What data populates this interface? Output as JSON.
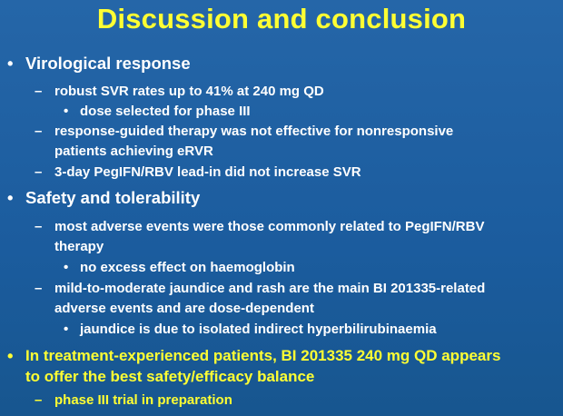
{
  "slide": {
    "title": "Discussion and conclusion",
    "colors": {
      "background": "#1d5fa0",
      "title": "#ffff33",
      "text": "#ffffff",
      "highlight": "#ffff33"
    },
    "bullet_markers": {
      "level1": "•",
      "level2": "–",
      "level3": "•"
    },
    "sections": [
      {
        "heading": "Virological response",
        "items": [
          {
            "text": "robust SVR rates up to 41% at 240 mg QD",
            "subitems": [
              "dose selected for phase III"
            ]
          },
          {
            "text_lines": [
              "response-guided therapy was not effective for nonresponsive",
              "patients achieving eRVR"
            ]
          },
          {
            "text": "3-day PegIFN/RBV lead-in did not increase SVR"
          }
        ]
      },
      {
        "heading": "Safety and tolerability",
        "items": [
          {
            "text_lines": [
              "most adverse events were those commonly related to PegIFN/RBV",
              "therapy"
            ],
            "subitems": [
              "no excess effect on haemoglobin"
            ]
          },
          {
            "text_lines": [
              "mild-to-moderate jaundice and rash are the main BI 201335-related",
              "adverse events and are dose-dependent"
            ],
            "subitems": [
              "jaundice is due to isolated indirect hyperbilirubinaemia"
            ]
          }
        ]
      },
      {
        "heading_lines": [
          "In treatment-experienced patients, BI 201335 240 mg QD appears",
          "to offer the best safety/efficacy balance"
        ],
        "items": [
          {
            "text": "phase III trial in preparation"
          }
        ]
      }
    ]
  }
}
